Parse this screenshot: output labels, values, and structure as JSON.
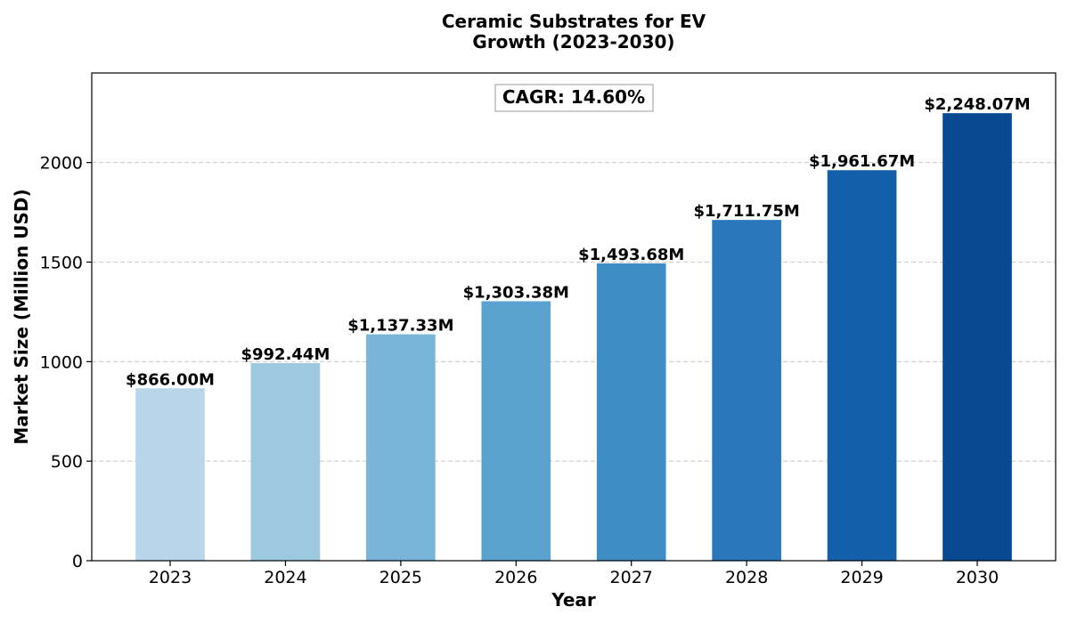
{
  "chart_data": {
    "type": "bar",
    "title_lines": [
      "Ceramic Substrates for EV",
      "Growth (2023-2030)"
    ],
    "xlabel": "Year",
    "ylabel": "Market Size (Million USD)",
    "categories": [
      "2023",
      "2024",
      "2025",
      "2026",
      "2027",
      "2028",
      "2029",
      "2030"
    ],
    "values": [
      866.0,
      992.44,
      1137.33,
      1303.38,
      1493.68,
      1711.75,
      1961.67,
      2248.07
    ],
    "value_labels": [
      "$866.00M",
      "$992.44M",
      "$1,137.33M",
      "$1,303.38M",
      "$1,493.68M",
      "$1,711.75M",
      "$1,961.67M",
      "$2,248.07M"
    ],
    "bar_colors": [
      "#b9d5ea",
      "#9cc8e0",
      "#79b5d8",
      "#5aa2cf",
      "#3f8dc5",
      "#2a78bb",
      "#145faa",
      "#084a91"
    ],
    "ylim": [
      0,
      2450
    ],
    "yticks": [
      0,
      500,
      1000,
      1500,
      2000
    ],
    "grid": "y-dashed",
    "annotation": "CAGR: 14.60%"
  }
}
